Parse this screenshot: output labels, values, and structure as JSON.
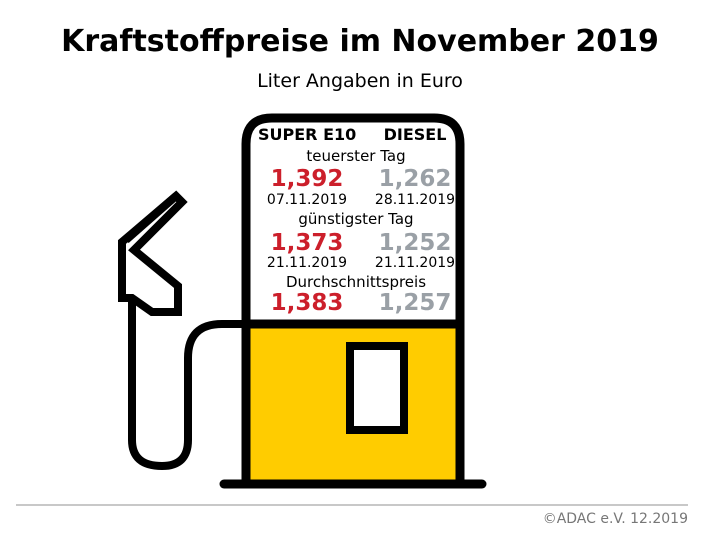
{
  "header": {
    "title": "Kraftstoffpreise im November 2019",
    "subtitle": "Liter Angaben in Euro"
  },
  "columns": {
    "super_e10": "SUPER E10",
    "diesel": "DIESEL"
  },
  "sections": {
    "most_expensive": {
      "label": "teuerster Tag",
      "super_price": "1,392",
      "super_date": "07.11.2019",
      "diesel_price": "1,262",
      "diesel_date": "28.11.2019"
    },
    "cheapest": {
      "label": "günstigster Tag",
      "super_price": "1,373",
      "super_date": "21.11.2019",
      "diesel_price": "1,252",
      "diesel_date": "21.11.2019"
    },
    "average": {
      "label": "Durchschnittspreis",
      "super_price": "1,383",
      "diesel_price": "1,257"
    }
  },
  "footer": {
    "copyright": "©ADAC e.V.  12.2019"
  },
  "colors": {
    "super": "#cc1f2b",
    "diesel": "#9aa0a6",
    "pump_fill": "#ffcc00",
    "outline": "#000000"
  },
  "icons": {
    "pump": "fuel-pump-icon",
    "nozzle": "fuel-nozzle-icon"
  }
}
